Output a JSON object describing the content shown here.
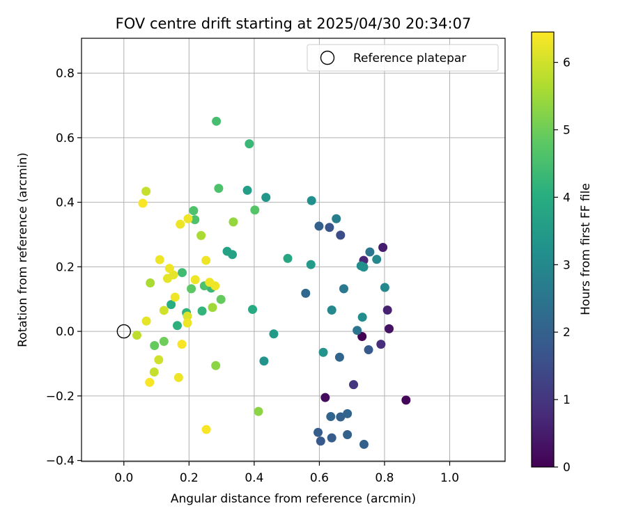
{
  "chart_data": {
    "type": "scatter",
    "title": "FOV centre drift starting at 2025/04/30 20:34:07",
    "xlabel": "Angular distance from reference (arcmin)",
    "ylabel": "Rotation from reference (arcmin)",
    "xlim": [
      -0.13,
      1.17
    ],
    "ylim": [
      -0.403,
      0.908
    ],
    "xticks": [
      0.0,
      0.2,
      0.4,
      0.6,
      0.8,
      1.0
    ],
    "xtick_labels": [
      "0.0",
      "0.2",
      "0.4",
      "0.6",
      "0.8",
      "1.0"
    ],
    "yticks": [
      -0.4,
      -0.2,
      0.0,
      0.2,
      0.4,
      0.6,
      0.8
    ],
    "ytick_labels": [
      "−0.4",
      "−0.2",
      "0.0",
      "0.2",
      "0.4",
      "0.6",
      "0.8"
    ],
    "grid": true,
    "legend": {
      "position": "top-right",
      "entries": [
        "Reference platepar"
      ]
    },
    "reference_point": {
      "x": 0.0,
      "y": 0.0
    },
    "colorbar": {
      "label": "Hours from first FF file",
      "min": 0,
      "max": 6.45,
      "colormap": "viridis",
      "ticks": [
        0,
        1,
        2,
        3,
        4,
        5,
        6
      ],
      "tick_labels": [
        "0",
        "1",
        "2",
        "3",
        "4",
        "5",
        "6"
      ]
    },
    "points": [
      {
        "x": 0.731,
        "y": -0.016,
        "c": 0.05
      },
      {
        "x": 0.866,
        "y": -0.213,
        "c": 0.1
      },
      {
        "x": 0.618,
        "y": -0.205,
        "c": 0.2
      },
      {
        "x": 0.814,
        "y": 0.008,
        "c": 0.3
      },
      {
        "x": 0.795,
        "y": 0.26,
        "c": 0.5
      },
      {
        "x": 0.809,
        "y": 0.066,
        "c": 0.6
      },
      {
        "x": 0.736,
        "y": 0.22,
        "c": 0.7
      },
      {
        "x": 0.789,
        "y": -0.04,
        "c": 0.8
      },
      {
        "x": 0.705,
        "y": -0.165,
        "c": 1.0
      },
      {
        "x": 0.665,
        "y": 0.298,
        "c": 1.5
      },
      {
        "x": 0.631,
        "y": 0.322,
        "c": 1.7
      },
      {
        "x": 0.751,
        "y": -0.057,
        "c": 1.8
      },
      {
        "x": 0.604,
        "y": -0.34,
        "c": 1.8
      },
      {
        "x": 0.596,
        "y": -0.313,
        "c": 1.9
      },
      {
        "x": 0.638,
        "y": -0.33,
        "c": 1.9
      },
      {
        "x": 0.599,
        "y": 0.326,
        "c": 2.0
      },
      {
        "x": 0.665,
        "y": -0.265,
        "c": 2.0
      },
      {
        "x": 0.686,
        "y": -0.32,
        "c": 2.0
      },
      {
        "x": 0.737,
        "y": -0.35,
        "c": 2.0
      },
      {
        "x": 0.635,
        "y": -0.264,
        "c": 2.1
      },
      {
        "x": 0.686,
        "y": -0.255,
        "c": 2.1
      },
      {
        "x": 0.662,
        "y": -0.08,
        "c": 2.1
      },
      {
        "x": 0.558,
        "y": 0.118,
        "c": 2.2
      },
      {
        "x": 0.755,
        "y": 0.246,
        "c": 2.5
      },
      {
        "x": 0.716,
        "y": 0.003,
        "c": 2.5
      },
      {
        "x": 0.675,
        "y": 0.132,
        "c": 2.6
      },
      {
        "x": 0.652,
        "y": 0.349,
        "c": 2.7
      },
      {
        "x": 0.638,
        "y": 0.066,
        "c": 3.0
      },
      {
        "x": 0.776,
        "y": 0.223,
        "c": 3.0
      },
      {
        "x": 0.801,
        "y": 0.136,
        "c": 3.0
      },
      {
        "x": 0.732,
        "y": 0.044,
        "c": 3.1
      },
      {
        "x": 0.728,
        "y": 0.203,
        "c": 3.1
      },
      {
        "x": 0.736,
        "y": 0.199,
        "c": 3.2
      },
      {
        "x": 0.576,
        "y": 0.405,
        "c": 3.2
      },
      {
        "x": 0.612,
        "y": -0.065,
        "c": 3.3
      },
      {
        "x": 0.43,
        "y": -0.092,
        "c": 3.3
      },
      {
        "x": 0.436,
        "y": 0.415,
        "c": 3.4
      },
      {
        "x": 0.46,
        "y": -0.008,
        "c": 3.5
      },
      {
        "x": 0.574,
        "y": 0.207,
        "c": 3.5
      },
      {
        "x": 0.379,
        "y": 0.437,
        "c": 3.6
      },
      {
        "x": 0.317,
        "y": 0.248,
        "c": 3.7
      },
      {
        "x": 0.333,
        "y": 0.238,
        "c": 3.7
      },
      {
        "x": 0.503,
        "y": 0.226,
        "c": 3.8
      },
      {
        "x": 0.395,
        "y": 0.068,
        "c": 3.9
      },
      {
        "x": 0.145,
        "y": 0.083,
        "c": 4.0
      },
      {
        "x": 0.164,
        "y": 0.018,
        "c": 4.1
      },
      {
        "x": 0.192,
        "y": 0.058,
        "c": 4.2
      },
      {
        "x": 0.24,
        "y": 0.063,
        "c": 4.2
      },
      {
        "x": 0.385,
        "y": 0.581,
        "c": 4.3
      },
      {
        "x": 0.268,
        "y": 0.134,
        "c": 4.3
      },
      {
        "x": 0.179,
        "y": 0.182,
        "c": 4.4
      },
      {
        "x": 0.284,
        "y": 0.651,
        "c": 4.5
      },
      {
        "x": 0.291,
        "y": 0.443,
        "c": 4.6
      },
      {
        "x": 0.214,
        "y": 0.374,
        "c": 4.6
      },
      {
        "x": 0.218,
        "y": 0.346,
        "c": 4.6
      },
      {
        "x": 0.247,
        "y": 0.141,
        "c": 4.6
      },
      {
        "x": 0.402,
        "y": 0.376,
        "c": 4.7
      },
      {
        "x": 0.207,
        "y": 0.132,
        "c": 4.8
      },
      {
        "x": 0.298,
        "y": 0.099,
        "c": 4.9
      },
      {
        "x": 0.094,
        "y": -0.044,
        "c": 4.9
      },
      {
        "x": 0.123,
        "y": -0.031,
        "c": 5.0
      },
      {
        "x": 0.413,
        "y": -0.248,
        "c": 5.3
      },
      {
        "x": 0.282,
        "y": -0.106,
        "c": 5.3
      },
      {
        "x": 0.336,
        "y": 0.339,
        "c": 5.4
      },
      {
        "x": 0.272,
        "y": 0.074,
        "c": 5.5
      },
      {
        "x": 0.237,
        "y": 0.297,
        "c": 5.6
      },
      {
        "x": 0.081,
        "y": 0.15,
        "c": 5.6
      },
      {
        "x": 0.04,
        "y": -0.012,
        "c": 5.8
      },
      {
        "x": 0.093,
        "y": -0.126,
        "c": 5.9
      },
      {
        "x": 0.068,
        "y": 0.434,
        "c": 5.9
      },
      {
        "x": 0.107,
        "y": -0.088,
        "c": 6.0
      },
      {
        "x": 0.123,
        "y": 0.065,
        "c": 6.0
      },
      {
        "x": 0.195,
        "y": 0.047,
        "c": 6.1
      },
      {
        "x": 0.069,
        "y": 0.032,
        "c": 6.2
      },
      {
        "x": 0.152,
        "y": 0.175,
        "c": 6.2
      },
      {
        "x": 0.134,
        "y": 0.164,
        "c": 6.2
      },
      {
        "x": 0.11,
        "y": 0.222,
        "c": 6.3
      },
      {
        "x": 0.14,
        "y": 0.195,
        "c": 6.3
      },
      {
        "x": 0.157,
        "y": 0.106,
        "c": 6.3
      },
      {
        "x": 0.173,
        "y": 0.332,
        "c": 6.3
      },
      {
        "x": 0.197,
        "y": 0.349,
        "c": 6.3
      },
      {
        "x": 0.195,
        "y": 0.026,
        "c": 6.3
      },
      {
        "x": 0.252,
        "y": 0.22,
        "c": 6.3
      },
      {
        "x": 0.263,
        "y": 0.152,
        "c": 6.3
      },
      {
        "x": 0.28,
        "y": 0.141,
        "c": 6.3
      },
      {
        "x": 0.219,
        "y": 0.16,
        "c": 6.3
      },
      {
        "x": 0.168,
        "y": -0.143,
        "c": 6.3
      },
      {
        "x": 0.058,
        "y": 0.397,
        "c": 6.4
      },
      {
        "x": 0.178,
        "y": -0.04,
        "c": 6.4
      },
      {
        "x": 0.079,
        "y": -0.158,
        "c": 6.4
      },
      {
        "x": 0.253,
        "y": -0.304,
        "c": 6.4
      }
    ]
  }
}
